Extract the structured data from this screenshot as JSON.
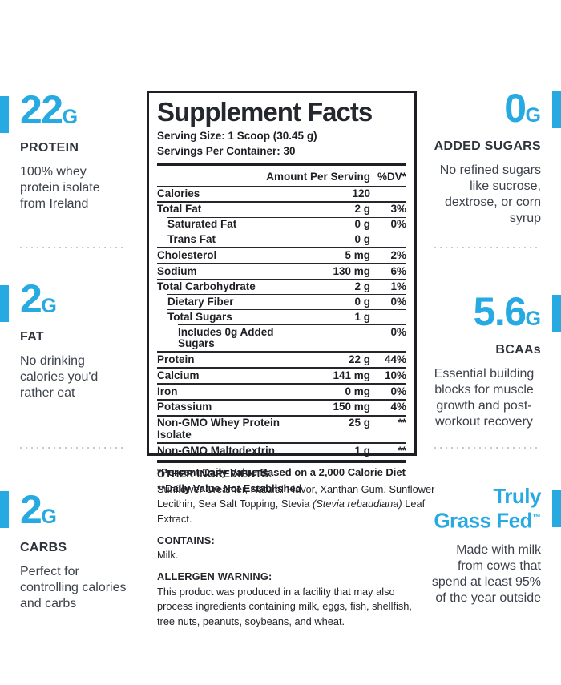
{
  "theme": {
    "accent_color": "#27aae1",
    "panel_text_color": "#1d1f24",
    "callout_heading_color": "#2f333c",
    "callout_body_color": "#3c414b",
    "dotted_divider_color": "#c9c9c9"
  },
  "panel": {
    "title": "Supplement Facts",
    "serving_size": "Serving Size: 1 Scoop (30.45 g)",
    "servings_per_container": "Servings Per Container: 30",
    "columns": {
      "amount": "Amount Per Serving",
      "dv": "%DV*"
    },
    "rows": [
      {
        "label": "Calories",
        "amount": "120",
        "dv": "",
        "indent": 0
      },
      {
        "label": "Total Fat",
        "amount": "2 g",
        "dv": "3%",
        "indent": 0
      },
      {
        "label": "Saturated Fat",
        "amount": "0 g",
        "dv": "0%",
        "indent": 1
      },
      {
        "label": "Trans Fat",
        "amount": "0 g",
        "dv": "",
        "indent": 1
      },
      {
        "label": "Cholesterol",
        "amount": "5 mg",
        "dv": "2%",
        "indent": 0
      },
      {
        "label": "Sodium",
        "amount": "130 mg",
        "dv": "6%",
        "indent": 0
      },
      {
        "label": "Total Carbohydrate",
        "amount": "2 g",
        "dv": "1%",
        "indent": 0
      },
      {
        "label": "Dietary Fiber",
        "amount": "0 g",
        "dv": "0%",
        "indent": 1
      },
      {
        "label": "Total Sugars",
        "amount": "1 g",
        "dv": "",
        "indent": 1
      },
      {
        "label": "Includes 0g Added Sugars",
        "amount": "",
        "dv": "0%",
        "indent": 2
      },
      {
        "label": "Protein",
        "amount": "22 g",
        "dv": "44%",
        "indent": 0
      },
      {
        "label": "Calcium",
        "amount": "141 mg",
        "dv": "10%",
        "indent": 0
      },
      {
        "label": "Iron",
        "amount": "0 mg",
        "dv": "0%",
        "indent": 0
      },
      {
        "label": "Potassium",
        "amount": "150 mg",
        "dv": "4%",
        "indent": 0
      },
      {
        "label": "Non-GMO Whey Protein Isolate",
        "amount": "25 g",
        "dv": "**",
        "indent": 0
      },
      {
        "label": "Non-GMO Maltodextrin",
        "amount": "1 g",
        "dv": "**",
        "indent": 0
      }
    ],
    "footnotes": [
      "*Percent Daily Value Based on a 2,000 Calorie Diet",
      "**Daily Value Not Established"
    ]
  },
  "info": {
    "other_heading": "OTHER INGREDIENTS:",
    "other_body_pre": "Sunflower Creamer, Natural Flavor, Xanthan Gum, Sunflower\nLecithin, Sea Salt Topping, Stevia ",
    "other_body_italic": "(Stevia rebaudiana)",
    "other_body_post": " Leaf\nExtract.",
    "contains_heading": "CONTAINS:",
    "contains_body": "Milk.",
    "allergen_heading": "ALLERGEN WARNING:",
    "allergen_body_lines": [
      "This product was produced in a facility that may also",
      "process ingredients containing milk, eggs, fish, shellfish,",
      "tree nuts, peanuts, soybeans, and wheat."
    ]
  },
  "callouts": {
    "protein": {
      "value": "22",
      "unit": "G",
      "heading": "PROTEIN",
      "body_lines": [
        "100% whey",
        "protein isolate",
        "from Ireland"
      ]
    },
    "fat": {
      "value": "2",
      "unit": "G",
      "heading": "FAT",
      "body_lines": [
        "No drinking",
        "calories you'd",
        "rather eat"
      ]
    },
    "carbs": {
      "value": "2",
      "unit": "G",
      "heading": "CARBS",
      "body_lines": [
        "Perfect for",
        "controlling calories",
        "and carbs"
      ]
    },
    "added_sugars": {
      "value": "0",
      "unit": "G",
      "heading": "ADDED SUGARS",
      "body_lines": [
        "No refined sugars",
        "like sucrose,",
        "dextrose, or corn",
        "syrup"
      ]
    },
    "bcaas": {
      "value": "5.6",
      "unit": "G",
      "heading": "BCAAs",
      "body_lines": [
        "Essential building",
        "blocks for muscle",
        "growth and post-",
        "workout recovery"
      ]
    },
    "grass_fed": {
      "title_lines": [
        "Truly",
        "Grass Fed"
      ],
      "trademark": "™",
      "body_lines": [
        "Made with milk",
        "from cows that",
        "spend at least 95%",
        "of the year outside"
      ]
    }
  }
}
